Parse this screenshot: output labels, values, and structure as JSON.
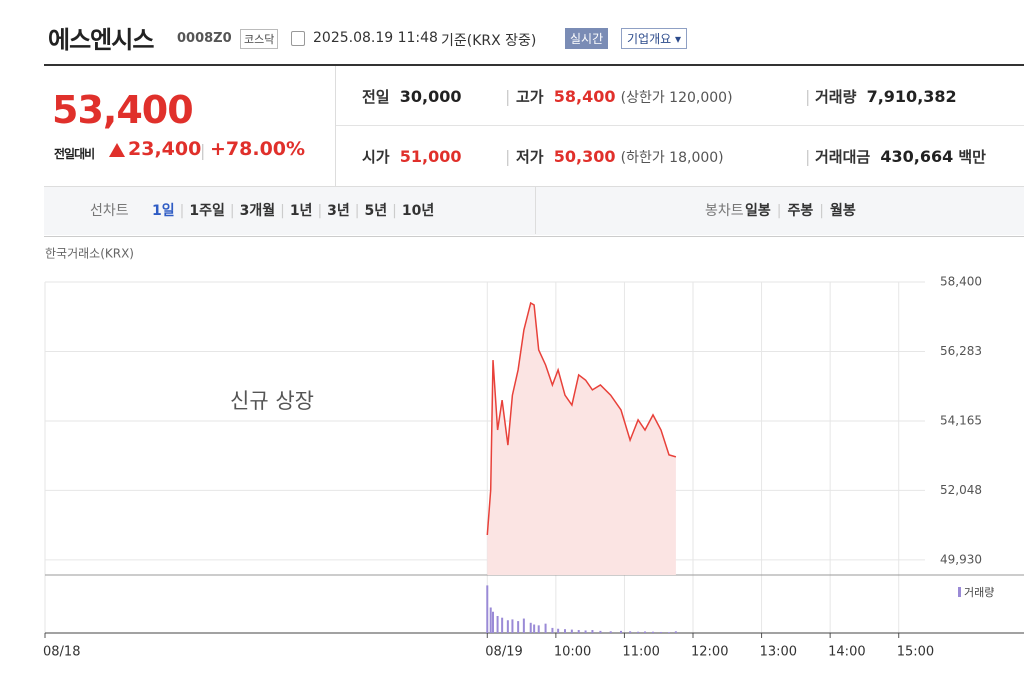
{
  "header": {
    "name": "에스엔시스",
    "code": "0008Z0",
    "market": "코스닥",
    "timestamp": "2025.08.19 11:48",
    "basis": "기준(KRX 장중)",
    "realtime": "실시간",
    "overview": "기업개요"
  },
  "quote": {
    "price": "53,400",
    "change_label": "전일대비",
    "change": "23,400",
    "change_pct": "+78.00%"
  },
  "stats": [
    {
      "label": "전일",
      "value": "30,000"
    },
    {
      "label": "고가",
      "value": "58,400",
      "note": "(상한가 120,000)"
    },
    {
      "label": "거래량",
      "value": "7,910,382"
    },
    {
      "label": "시가",
      "value": "51,000"
    },
    {
      "label": "저가",
      "value": "50,300",
      "note": "(하한가 18,000)"
    },
    {
      "label": "거래대금",
      "value": "430,664",
      "unit": "백만"
    }
  ],
  "tabs": {
    "line_label": "선차트",
    "line_items": [
      "1일",
      "1주일",
      "3개월",
      "1년",
      "3년",
      "5년",
      "10년"
    ],
    "candle_label": "봉차트",
    "candle_items": [
      "일봉",
      "주봉",
      "월봉"
    ]
  },
  "chart_data": {
    "type": "line",
    "source": "한국거래소(KRX)",
    "annotation": "신규 상장",
    "x": [
      0,
      3,
      5,
      9,
      13,
      18,
      22,
      27,
      32,
      38,
      41,
      45,
      51,
      57,
      62,
      68,
      74,
      80,
      86,
      92,
      99,
      108,
      117,
      125,
      132,
      138,
      145,
      152,
      159,
      165
    ],
    "values": [
      50690,
      52060,
      56020,
      53890,
      54800,
      53430,
      54950,
      55720,
      56940,
      57760,
      57700,
      56330,
      55870,
      55260,
      55720,
      54950,
      54650,
      55570,
      55410,
      55110,
      55260,
      54950,
      54500,
      53580,
      54200,
      53890,
      54350,
      53890,
      53130,
      53070
    ],
    "color": "#e8413a",
    "fill": "#fbe4e3",
    "xlim": [
      -387,
      383
    ],
    "xticks": [
      {
        "value": -387,
        "label": "08/18"
      },
      {
        "value": 0,
        "label": "08/19"
      },
      {
        "value": 60,
        "label": "10:00"
      },
      {
        "value": 120,
        "label": "11:00"
      },
      {
        "value": 180,
        "label": "12:00"
      },
      {
        "value": 240,
        "label": "13:00"
      },
      {
        "value": 300,
        "label": "14:00"
      },
      {
        "value": 360,
        "label": "15:00"
      }
    ],
    "ylim": [
      49470,
      58400
    ],
    "yticks": [
      {
        "value": 58400,
        "label": "58,400"
      },
      {
        "value": 56283,
        "label": "56,283"
      },
      {
        "value": 54165,
        "label": "54,165"
      },
      {
        "value": 52048,
        "label": "52,048"
      },
      {
        "value": 49930,
        "label": "49,930"
      }
    ],
    "grid": true,
    "volume": {
      "name": "거래량",
      "color": "#9a8ad6",
      "ylim": [
        0,
        600000
      ],
      "values": [
        560000,
        300000,
        250000,
        200000,
        180000,
        150000,
        160000,
        140000,
        170000,
        120000,
        100000,
        90000,
        110000,
        60000,
        50000,
        45000,
        40000,
        35000,
        30000,
        35000,
        25000,
        20000,
        25000,
        20000,
        15000,
        18000,
        15000,
        12000,
        10000,
        20000
      ]
    }
  }
}
